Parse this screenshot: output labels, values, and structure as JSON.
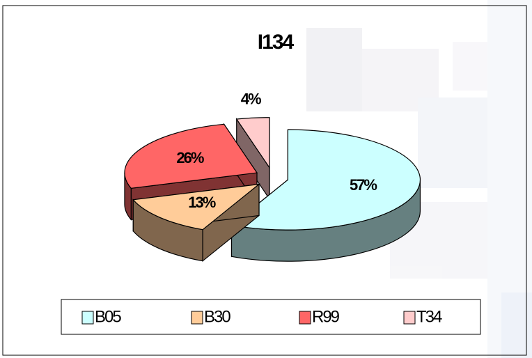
{
  "chart_data": {
    "type": "pie",
    "title": "I134",
    "categories": [
      "B05",
      "B30",
      "R99",
      "T34"
    ],
    "values": [
      57,
      13,
      26,
      4
    ],
    "value_labels": [
      "57%",
      "13%",
      "26%",
      "4%"
    ],
    "colors": [
      "#ccffff",
      "#ffcc99",
      "#ff6666",
      "#ffcccc"
    ],
    "legend": "bottom"
  }
}
